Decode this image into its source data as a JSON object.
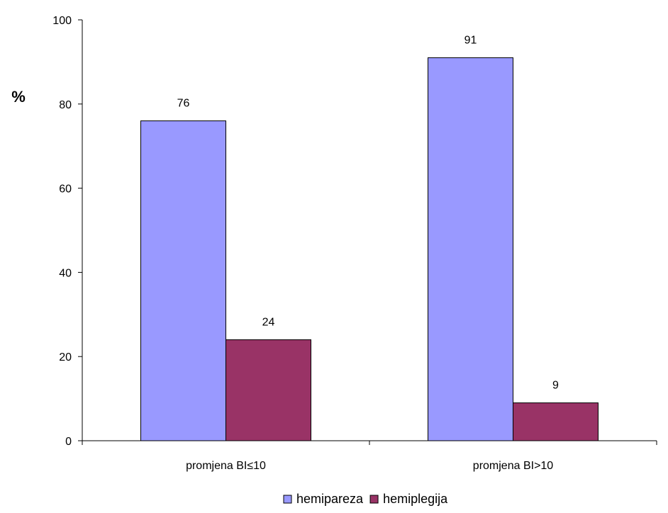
{
  "chart_data": {
    "type": "bar",
    "categories": [
      "promjena BI≤10",
      "promjena BI>10"
    ],
    "series": [
      {
        "name": "hemipareza",
        "values": [
          76,
          91
        ],
        "color": "#9999ff"
      },
      {
        "name": "hemiplegija",
        "values": [
          24,
          9
        ],
        "color": "#993366"
      }
    ],
    "ylabel": "%",
    "ylim": [
      0,
      100
    ],
    "yticks": [
      0,
      20,
      40,
      60,
      80,
      100
    ],
    "grid": false,
    "legend_position": "bottom"
  }
}
